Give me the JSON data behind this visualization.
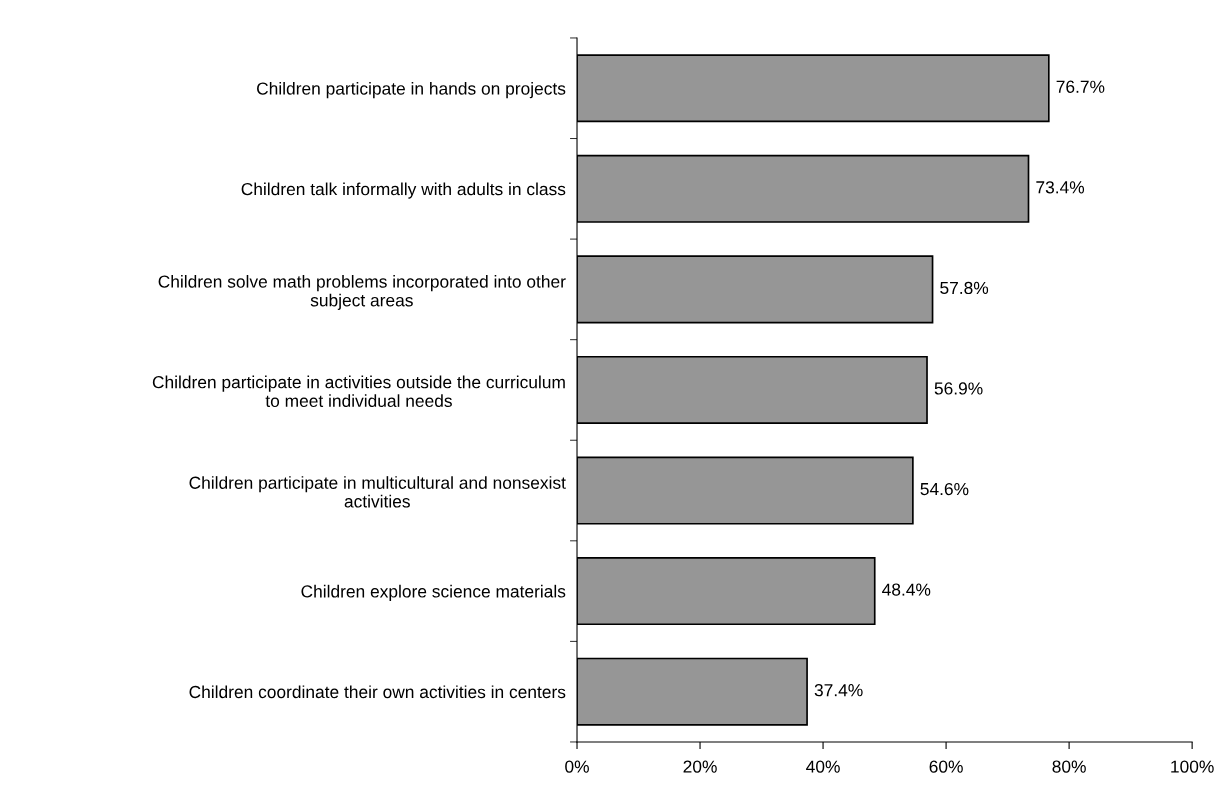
{
  "chart_data": {
    "type": "bar",
    "orientation": "horizontal",
    "categories": [
      "Children participate in hands on projects",
      "Children talk informally with adults in class",
      "Children solve math problems incorporated into other\nsubject areas",
      "Children participate in activities outside the curriculum\nto meet individual needs",
      "Children participate in multicultural and nonsexist\nactivities",
      "Children explore science materials",
      "Children coordinate their own activities in centers"
    ],
    "values": [
      76.7,
      73.4,
      57.8,
      56.9,
      54.6,
      48.4,
      37.4
    ],
    "value_labels": [
      "76.7%",
      "73.4%",
      "57.8%",
      "56.9%",
      "54.6%",
      "48.4%",
      "37.4%"
    ],
    "color": "#969696",
    "xlim": [
      0,
      100
    ],
    "xticks": [
      {
        "value": 0,
        "label": "0%"
      },
      {
        "value": 20,
        "label": "20%"
      },
      {
        "value": 40,
        "label": "40%"
      },
      {
        "value": 60,
        "label": "60%"
      },
      {
        "value": 80,
        "label": "80%"
      },
      {
        "value": 100,
        "label": "100%"
      }
    ],
    "grid": false,
    "legend": false
  }
}
